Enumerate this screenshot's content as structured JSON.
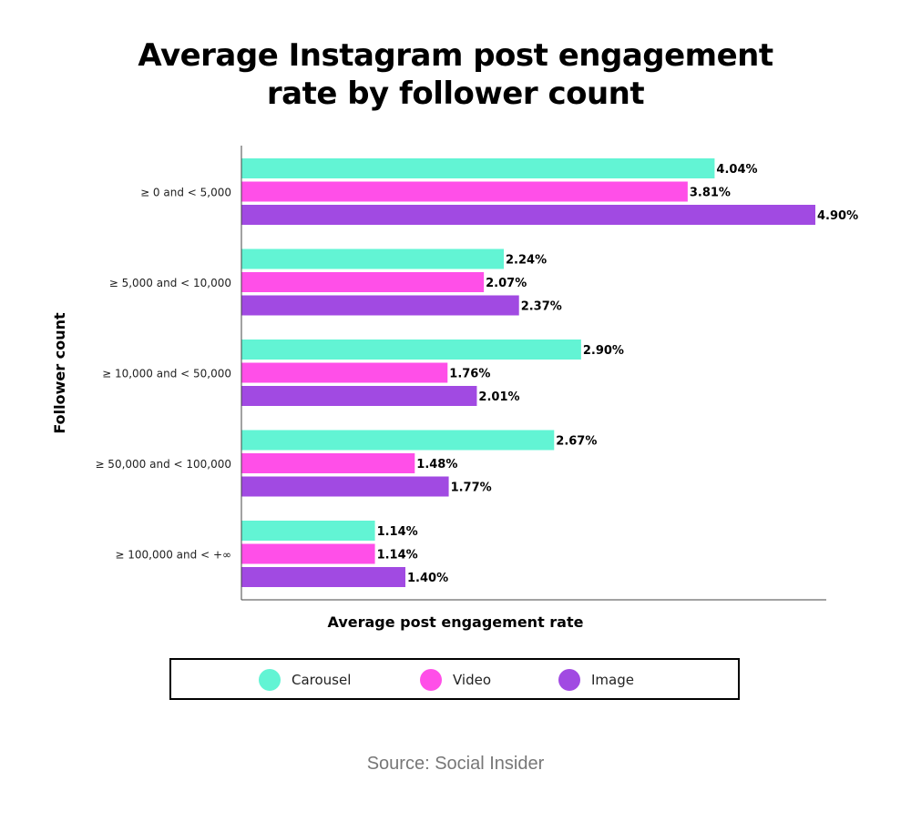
{
  "title_lines": [
    "Average Instagram post engagement",
    "rate by follower count"
  ],
  "source": "Source: Social Insider",
  "colors": {
    "Carousel": "#62F4D4",
    "Video": "#FF4FE8",
    "Image": "#A14AE2",
    "axis": "#444444"
  },
  "legend": [
    {
      "name": "Carousel",
      "icon": "circle-swatch"
    },
    {
      "name": "Video",
      "icon": "circle-swatch"
    },
    {
      "name": "Image",
      "icon": "circle-swatch"
    }
  ],
  "chart_data": {
    "type": "bar",
    "orientation": "horizontal",
    "title": "Average Instagram post engagement rate by follower count",
    "xlabel": "Average post engagement rate",
    "ylabel": "Follower count",
    "categories": [
      "≥ 0 and < 5,000",
      "≥ 5,000 and < 10,000",
      "≥ 10,000 and < 50,000",
      "≥ 50,000 and < 100,000",
      "≥ 100,000 and <  +∞"
    ],
    "series": [
      {
        "name": "Carousel",
        "values": [
          4.04,
          2.24,
          2.9,
          2.67,
          1.14
        ],
        "labels": [
          "4.04%",
          "2.24%",
          "2.90%",
          "2.67%",
          "1.14%"
        ]
      },
      {
        "name": "Video",
        "values": [
          3.81,
          2.07,
          1.76,
          1.48,
          1.14
        ],
        "labels": [
          "3.81%",
          "2.07%",
          "1.76%",
          "1.48%",
          "1.14%"
        ]
      },
      {
        "name": "Image",
        "values": [
          4.9,
          2.37,
          2.01,
          1.77,
          1.4
        ],
        "labels": [
          "4.90%",
          "2.37%",
          "2.01%",
          "1.77%",
          "1.40%"
        ]
      }
    ],
    "xlim": [
      0,
      5.0
    ],
    "grid": false,
    "legend_position": "bottom"
  }
}
